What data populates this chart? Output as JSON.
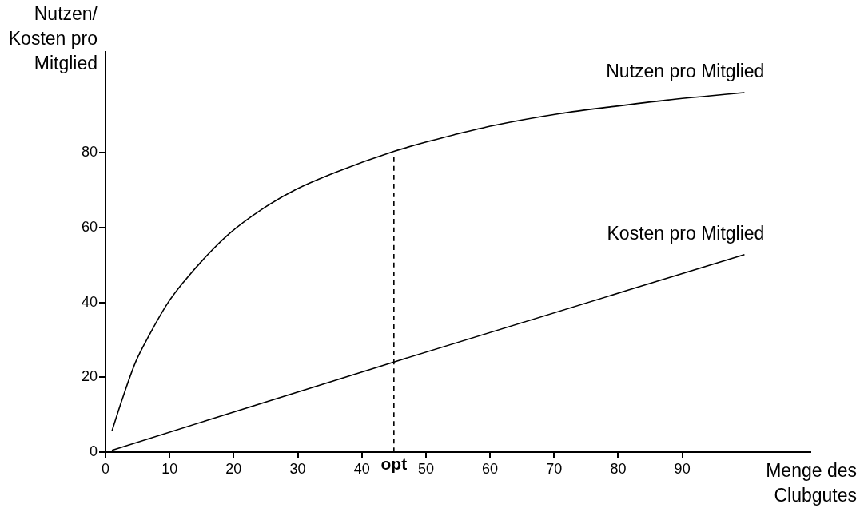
{
  "chart_data": {
    "type": "line",
    "xlabel": "Menge des Clubgutes",
    "ylabel": "Nutzen/ Kosten pro Mitglied",
    "xlim": [
      0,
      110
    ],
    "xticks": [
      0,
      10,
      20,
      30,
      40,
      50,
      60,
      70,
      80,
      90
    ],
    "ylim": [
      0,
      107
    ],
    "yticks": [
      0,
      20,
      40,
      60,
      80
    ],
    "marker": "none",
    "series": [
      {
        "name": "Nutzen pro Mitglied",
        "color": "#000000",
        "x": [
          1.0,
          2.6,
          4.7,
          6.8,
          9.7,
          12.2,
          15.9,
          19.3,
          24.3,
          29.7,
          35.9,
          45,
          50.9,
          54.3,
          60.5,
          70.9,
          79.3,
          87.6,
          99.7
        ],
        "values": [
          5.6,
          14.1,
          24.1,
          31.2,
          39.8,
          45.5,
          52.7,
          58.4,
          64.8,
          70.2,
          74.8,
          80.4,
          83.3,
          84.8,
          87.3,
          90.5,
          92.4,
          94.1,
          96.1
        ]
      },
      {
        "name": "Kosten pro Mitglied",
        "color": "#000000",
        "x": [
          1.0,
          45,
          99.7
        ],
        "values": [
          0.5,
          24.1,
          52.8
        ]
      },
      {
        "color": "#000000",
        "line_style": "dashed",
        "x": [
          45,
          45
        ],
        "values": [
          0,
          79
        ]
      }
    ],
    "annotations": [
      {
        "text": "opt",
        "x": 45,
        "y": 0
      }
    ]
  }
}
